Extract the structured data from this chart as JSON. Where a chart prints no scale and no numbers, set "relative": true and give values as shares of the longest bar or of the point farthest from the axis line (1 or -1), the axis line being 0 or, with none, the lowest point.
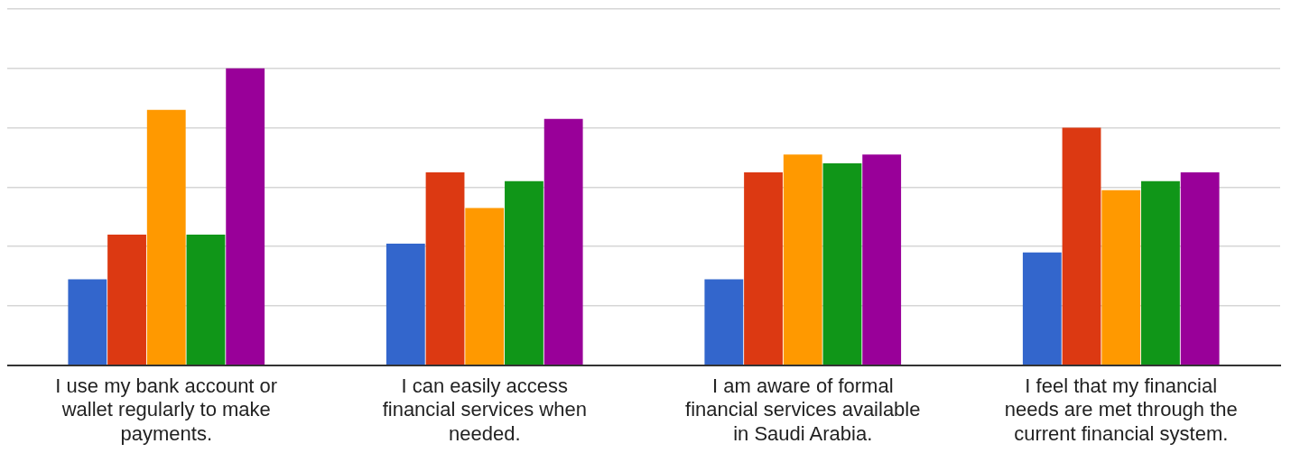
{
  "chart_data": {
    "type": "bar",
    "relative": true,
    "grid": "y",
    "legend": false,
    "categories": [
      "I use my bank account or wallet regularly to make payments.",
      "I can easily access financial services when needed.",
      "I am aware of formal financial services available in Saudi Arabia.",
      "I feel that my financial needs are met through the current financial system."
    ],
    "series": [
      {
        "color": "#3366cc",
        "values": [
          0.29,
          0.41,
          0.29,
          0.38
        ]
      },
      {
        "color": "#dc3912",
        "values": [
          0.44,
          0.65,
          0.65,
          0.8
        ]
      },
      {
        "color": "#ff9900",
        "values": [
          0.86,
          0.53,
          0.71,
          0.59
        ]
      },
      {
        "color": "#109618",
        "values": [
          0.44,
          0.62,
          0.68,
          0.62
        ]
      },
      {
        "color": "#990099",
        "values": [
          1,
          0.83,
          0.71,
          0.65
        ]
      }
    ]
  }
}
